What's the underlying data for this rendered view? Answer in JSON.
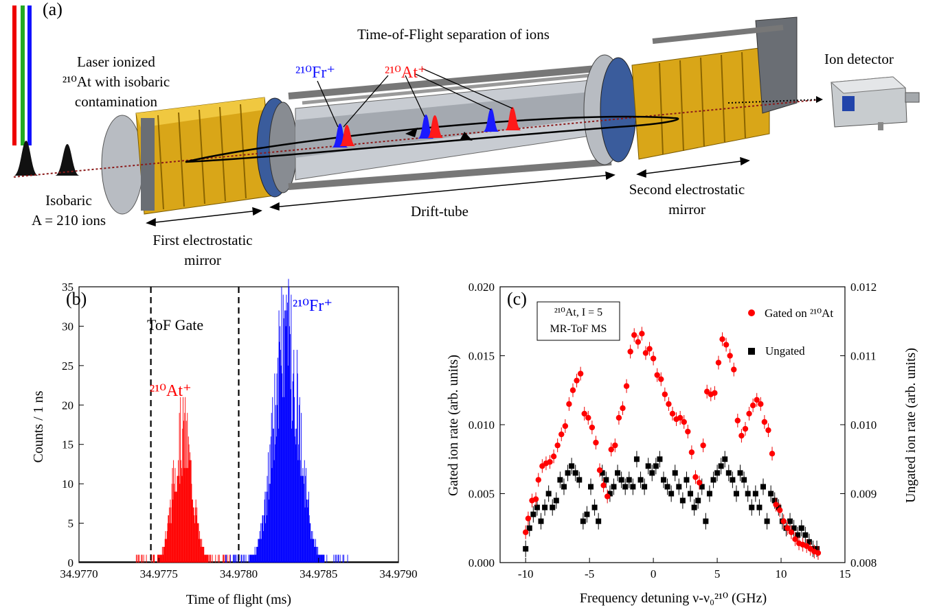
{
  "panel_a": {
    "tag": "(a)",
    "title": "Time-of-Flight separation of ions",
    "laser_label": [
      "Laser ionized",
      "²¹⁰At with isobaric",
      "contamination"
    ],
    "isobaric_label": [
      "Isobaric",
      "A = 210 ions"
    ],
    "first_mirror": [
      "First electrostatic",
      "mirror"
    ],
    "drift_tube": "Drift-tube",
    "second_mirror": [
      "Second electrostatic",
      "mirror"
    ],
    "detector": "Ion detector",
    "fr_ion": "²¹⁰Fr⁺",
    "at_ion": "²¹⁰At⁺",
    "colors": {
      "fr": "#1a1aff",
      "at": "#ff1a1a",
      "mirror": "#e8b820",
      "tube": "#9aa0a8"
    }
  },
  "chart_data": [
    {
      "type": "bar",
      "tag": "(b)",
      "gate_label": "ToF Gate",
      "xlabel": "Time of flight  (ms)",
      "ylabel": "Counts / 1 ns",
      "xlim": [
        34.977,
        34.979
      ],
      "ylim": [
        0,
        35
      ],
      "xticks": [
        "34.9770",
        "34.9775",
        "34.9780",
        "34.9785",
        "34.9790"
      ],
      "yticks": [
        "0",
        "5",
        "10",
        "15",
        "20",
        "25",
        "30",
        "35"
      ],
      "gate": [
        34.97745,
        34.978
      ],
      "series": [
        {
          "name": "²¹⁰At⁺",
          "color": "#ff0000",
          "center": 34.97765,
          "sigma": 6e-05,
          "peak": 19
        },
        {
          "name": "²¹⁰Fr⁺",
          "color": "#0000ff",
          "center": 34.9783,
          "sigma": 8e-05,
          "peak": 34
        }
      ]
    },
    {
      "type": "scatter",
      "tag": "(c)",
      "annotation": [
        "²¹⁰At, I = 5",
        "MR-ToF MS"
      ],
      "xlabel": "Frequency detuning ν-ν₀²¹⁰ (GHz)",
      "ylabel_left": "Gated ion rate (arb. units)",
      "ylabel_right": "Ungated ion rate (arb. units)",
      "xlim": [
        -12,
        15
      ],
      "ylim_left": [
        0,
        0.02
      ],
      "ylim_right": [
        0.008,
        0.012
      ],
      "xticks": [
        "-10",
        "-5",
        "0",
        "5",
        "10",
        "15"
      ],
      "yticks_left": [
        "0.000",
        "0.005",
        "0.010",
        "0.015",
        "0.020"
      ],
      "yticks_right": [
        "0.008",
        "0.009",
        "0.010",
        "0.011",
        "0.012"
      ],
      "legend": [
        "Gated on ²¹⁰At",
        "Ungated"
      ],
      "series": [
        {
          "name": "Gated on ²¹⁰At",
          "color": "#ff0000",
          "marker": "circle",
          "x": [
            -10,
            -9.8,
            -9.5,
            -9.2,
            -9,
            -8.7,
            -8.4,
            -8.1,
            -7.8,
            -7.5,
            -7.2,
            -6.9,
            -6.6,
            -6.3,
            -6,
            -5.7,
            -5.4,
            -5.1,
            -4.8,
            -4.5,
            -4.2,
            -3.9,
            -3.6,
            -3.3,
            -3,
            -2.7,
            -2.4,
            -2.1,
            -1.8,
            -1.5,
            -1.2,
            -0.9,
            -0.6,
            -0.3,
            0,
            0.3,
            0.6,
            0.9,
            1.2,
            1.5,
            1.8,
            2.1,
            2.4,
            2.7,
            3,
            3.3,
            3.6,
            3.9,
            4.2,
            4.5,
            4.8,
            5.1,
            5.4,
            5.7,
            6,
            6.3,
            6.6,
            6.9,
            7.2,
            7.5,
            7.8,
            8.1,
            8.4,
            8.7,
            9,
            9.3,
            9.6,
            9.9,
            10.2,
            10.5,
            10.8,
            11.1,
            11.4,
            11.7,
            12,
            12.3,
            12.6,
            12.9
          ],
          "y": [
            0.0022,
            0.0032,
            0.0045,
            0.0046,
            0.006,
            0.007,
            0.0072,
            0.0073,
            0.0077,
            0.0085,
            0.0093,
            0.0099,
            0.0115,
            0.0125,
            0.0132,
            0.0137,
            0.0108,
            0.0105,
            0.0098,
            0.0087,
            0.0067,
            0.0056,
            0.0048,
            0.0082,
            0.0085,
            0.0105,
            0.0112,
            0.0128,
            0.0153,
            0.0165,
            0.016,
            0.0166,
            0.0152,
            0.0155,
            0.0148,
            0.0136,
            0.0133,
            0.0122,
            0.0115,
            0.0108,
            0.0104,
            0.0105,
            0.0102,
            0.0095,
            0.008,
            0.0062,
            0.0058,
            0.0085,
            0.0124,
            0.0122,
            0.0123,
            0.0145,
            0.0162,
            0.0158,
            0.015,
            0.014,
            0.0103,
            0.0092,
            0.0097,
            0.0108,
            0.0114,
            0.0118,
            0.0115,
            0.0102,
            0.0096,
            0.0079,
            0.0042,
            0.0038,
            0.003,
            0.0025,
            0.0022,
            0.0017,
            0.0014,
            0.0013,
            0.0012,
            0.001,
            0.0008,
            0.0007
          ]
        },
        {
          "name": "Ungated",
          "color": "#000000",
          "marker": "square",
          "x": [
            -10,
            -9.7,
            -9.4,
            -9.1,
            -8.8,
            -8.5,
            -8.2,
            -7.9,
            -7.6,
            -7.3,
            -7,
            -6.7,
            -6.4,
            -6.1,
            -5.8,
            -5.5,
            -5.2,
            -4.9,
            -4.6,
            -4.3,
            -4,
            -3.7,
            -3.4,
            -3.1,
            -2.8,
            -2.5,
            -2.2,
            -1.9,
            -1.6,
            -1.3,
            -1,
            -0.7,
            -0.4,
            -0.1,
            0.2,
            0.5,
            0.8,
            1.1,
            1.4,
            1.7,
            2,
            2.3,
            2.6,
            2.9,
            3.2,
            3.5,
            3.8,
            4.1,
            4.4,
            4.7,
            5,
            5.3,
            5.6,
            5.9,
            6.2,
            6.5,
            6.8,
            7.1,
            7.4,
            7.7,
            8,
            8.3,
            8.6,
            8.9,
            9.2,
            9.5,
            9.8,
            10.1,
            10.4,
            10.7,
            11,
            11.3,
            11.6,
            11.9,
            12.2,
            12.5,
            12.8
          ],
          "y": [
            0.0082,
            0.0085,
            0.0087,
            0.0088,
            0.0086,
            0.0088,
            0.009,
            0.0088,
            0.0089,
            0.0092,
            0.0091,
            0.0093,
            0.0094,
            0.0093,
            0.0092,
            0.0086,
            0.0087,
            0.0091,
            0.0088,
            0.0086,
            0.0093,
            0.0092,
            0.009,
            0.0091,
            0.0093,
            0.0092,
            0.0091,
            0.0092,
            0.0091,
            0.0095,
            0.0092,
            0.0091,
            0.0094,
            0.0093,
            0.0094,
            0.0095,
            0.0092,
            0.0091,
            0.009,
            0.0093,
            0.0091,
            0.0089,
            0.0092,
            0.009,
            0.0088,
            0.0089,
            0.0091,
            0.0086,
            0.009,
            0.0092,
            0.0093,
            0.0094,
            0.0095,
            0.0093,
            0.0092,
            0.009,
            0.0093,
            0.0092,
            0.009,
            0.0088,
            0.009,
            0.0088,
            0.0091,
            0.0086,
            0.009,
            0.0089,
            0.0088,
            0.0086,
            0.0085,
            0.0086,
            0.0085,
            0.0084,
            0.0085,
            0.0084,
            0.0083,
            0.0082,
            0.0082
          ]
        }
      ]
    }
  ]
}
